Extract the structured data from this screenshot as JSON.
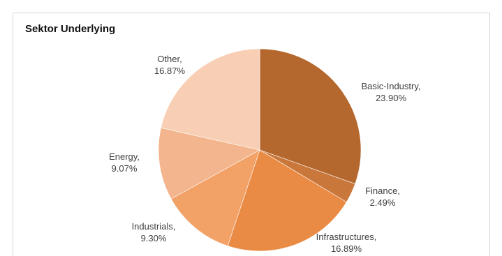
{
  "chart_data": {
    "type": "pie",
    "title": "Sektor Underlying",
    "slices": [
      {
        "name": "Basic-Industry",
        "value_label": "23.90%",
        "value": 23.9,
        "color": "#b5682d"
      },
      {
        "name": "Finance",
        "value_label": "2.49%",
        "value": 2.49,
        "color": "#c9773a"
      },
      {
        "name": "Infrastructures",
        "value_label": "16.89%",
        "value": 16.89,
        "color": "#ea8b45"
      },
      {
        "name": "Industrials",
        "value_label": "9.30%",
        "value": 9.3,
        "color": "#f2a167"
      },
      {
        "name": "Energy",
        "value_label": "9.07%",
        "value": 9.07,
        "color": "#f3b58d"
      },
      {
        "name": "Other",
        "value_label": "16.87%",
        "value": 16.87,
        "color": "#f8cfb4"
      }
    ]
  }
}
